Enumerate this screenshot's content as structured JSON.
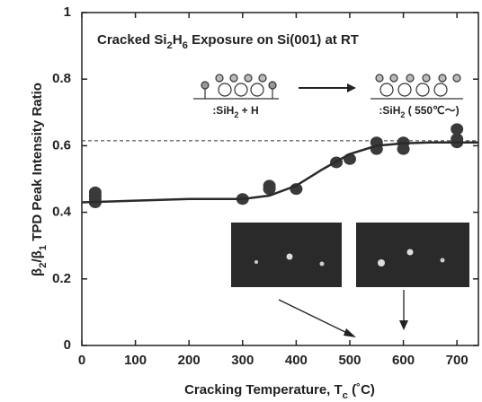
{
  "chart_data": {
    "type": "scatter",
    "annotation": [
      "Cracked Si",
      "2",
      "H",
      "6",
      " Exposure on Si(001) at RT"
    ],
    "y_label": [
      "β",
      "2",
      "/β",
      "1",
      " TPD Peak Intensity Ratio"
    ],
    "x_label": [
      "Cracking Temperature, T",
      "c",
      " (˚C)"
    ],
    "inset_labels": [
      [
        ":SiH",
        "2",
        " + H"
      ],
      [
        ":SiH",
        "2",
        " ( 550℃～)"
      ]
    ],
    "xlim": [
      0,
      740
    ],
    "ylim": [
      0,
      1
    ],
    "xticks": [
      0,
      100,
      200,
      300,
      400,
      500,
      600,
      700
    ],
    "yticks": [
      0,
      0.2,
      0.4,
      0.6,
      0.8,
      1
    ],
    "reference_line": 0.615,
    "series": [
      {
        "type": "scatter",
        "color": "#3a3a3a",
        "x": [
          25,
          25,
          25,
          25,
          300,
          350,
          350,
          400,
          475,
          500,
          550,
          550,
          600,
          600,
          700,
          700,
          700
        ],
        "values": [
          0.46,
          0.45,
          0.44,
          0.43,
          0.44,
          0.48,
          0.47,
          0.47,
          0.55,
          0.56,
          0.61,
          0.59,
          0.61,
          0.59,
          0.65,
          0.62,
          0.61
        ]
      },
      {
        "type": "line",
        "color": "#2a2a2a",
        "x": [
          0,
          100,
          200,
          300,
          350,
          400,
          450,
          500,
          550,
          600,
          650,
          700,
          740
        ],
        "values": [
          0.43,
          0.435,
          0.44,
          0.44,
          0.45,
          0.48,
          0.53,
          0.575,
          0.6,
          0.607,
          0.61,
          0.61,
          0.61
        ]
      }
    ]
  }
}
